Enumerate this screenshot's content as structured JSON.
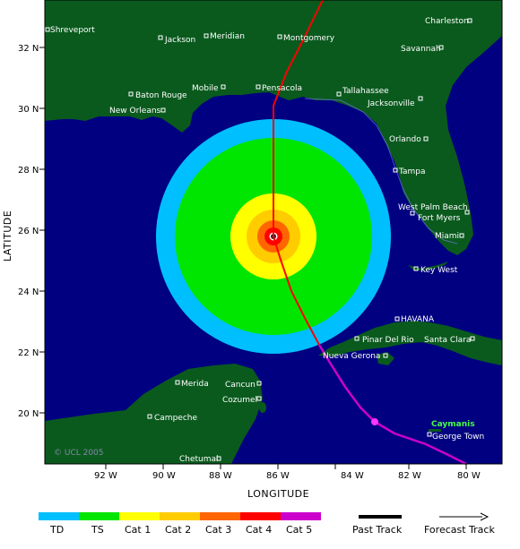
{
  "map": {
    "copyright": "© UCL 2005",
    "xlabel": "LONGITUDE",
    "ylabel": "LATITUDE",
    "lon_ticks": [
      "92 W",
      "90 W",
      "88 W",
      "86 W",
      "84 W",
      "82 W",
      "80 W"
    ],
    "lat_ticks": [
      "32 N",
      "30 N",
      "28 N",
      "26 N",
      "24 N",
      "22 N",
      "20 N"
    ],
    "cities": [
      "Shreveport",
      "Jackson",
      "Meridian",
      "Montgomery",
      "Charleston",
      "Savannah",
      "Mobile",
      "Pensacola",
      "Tallahassee",
      "Baton Rouge",
      "Jacksonville",
      "New Orleans",
      "Orlando",
      "Tampa",
      "West Palm Beach",
      "Fort Myers",
      "Miami",
      "Key West",
      "HAVANA",
      "Pinar Del Rio",
      "Santa Clara",
      "Nueva Gerona",
      "Merida",
      "Cancun",
      "Cozumel",
      "Campeche",
      "Chetumal",
      "Caymanis",
      "George Town"
    ]
  },
  "legend": {
    "categories": [
      {
        "label": "TD",
        "color": "#00bfff"
      },
      {
        "label": "TS",
        "color": "#00e600"
      },
      {
        "label": "Cat 1",
        "color": "#ffff00"
      },
      {
        "label": "Cat 2",
        "color": "#ffcc00"
      },
      {
        "label": "Cat 3",
        "color": "#ff6600"
      },
      {
        "label": "Cat 4",
        "color": "#ff0000"
      },
      {
        "label": "Cat 5",
        "color": "#cc00cc"
      }
    ],
    "past_track": "Past Track",
    "forecast_track": "Forecast Track"
  },
  "colors": {
    "sea": "#000080",
    "land": "#0a5a1e"
  }
}
